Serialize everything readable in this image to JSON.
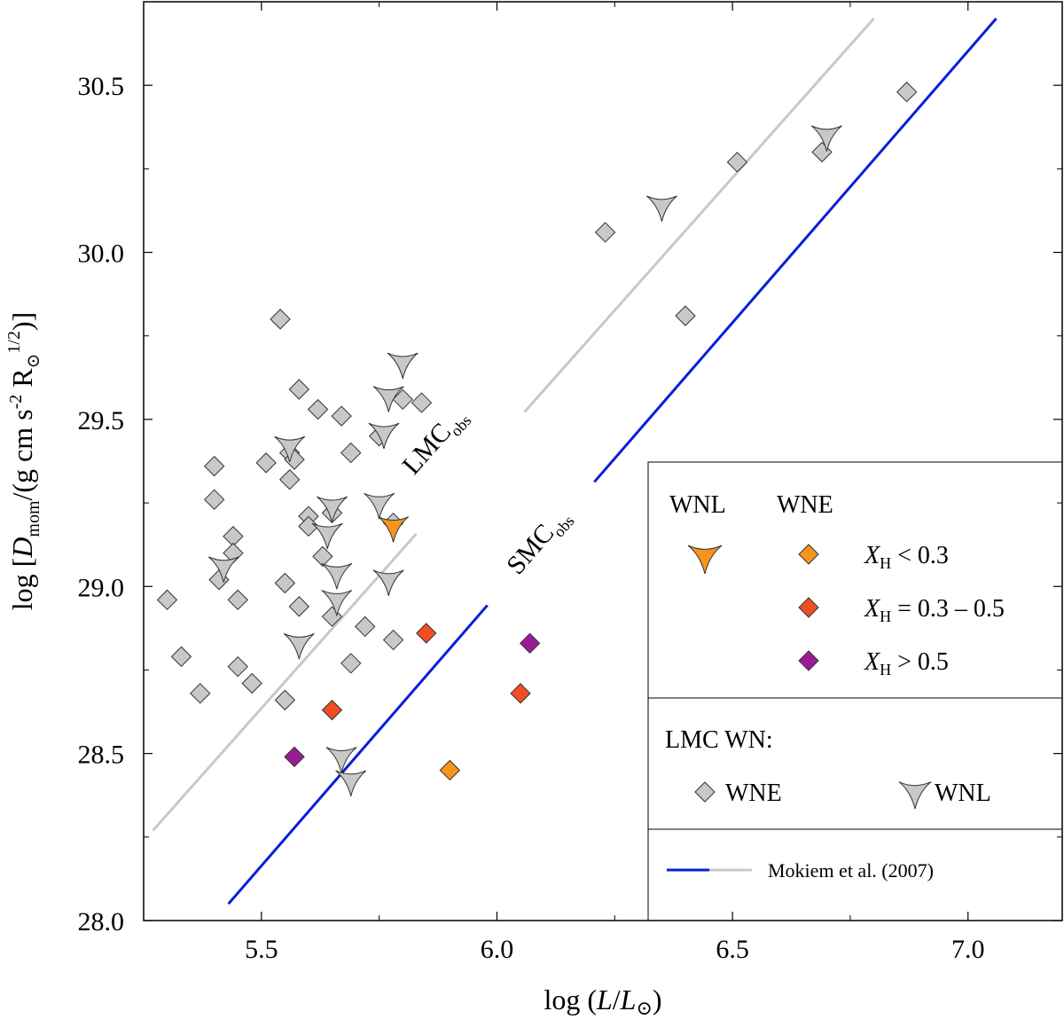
{
  "chart_data": {
    "type": "scatter",
    "xlabel": "log (L/L⊙)",
    "ylabel": "log [Dmom/(g cm s-2 R⊙1/2)]",
    "xlim": [
      5.25,
      7.2
    ],
    "ylim": [
      28.0,
      30.75
    ],
    "x_ticks": [
      5.5,
      6.0,
      6.5,
      7.0
    ],
    "x_tick_labels": [
      "5.5",
      "6.0",
      "6.5",
      "7.0"
    ],
    "y_ticks": [
      28.0,
      28.5,
      29.0,
      29.5,
      30.0,
      30.5
    ],
    "y_tick_labels": [
      "28.0",
      "28.5",
      "29.0",
      "29.5",
      "30.0",
      "30.5"
    ],
    "colors": {
      "lmc_marker": "#c8c8c8",
      "xh_low": "#f7941d",
      "xh_mid": "#f04e23",
      "xh_high": "#9b1b96",
      "wnl_smc": "#f7941d",
      "smc_line": "#0a1edc",
      "lmc_line": "#c8c8c8"
    },
    "lines": [
      {
        "name": "LMC",
        "subscript": "obs",
        "color": "#c8c8c8",
        "points": [
          [
            5.27,
            28.27
          ],
          [
            6.8,
            30.7
          ]
        ],
        "label_pos": [
          5.88,
          29.42
        ]
      },
      {
        "name": "SMC",
        "subscript": "obs",
        "color": "#0a1edc",
        "points": [
          [
            5.43,
            28.05
          ],
          [
            7.06,
            30.7
          ]
        ],
        "label_pos": [
          6.1,
          29.12
        ]
      }
    ],
    "series": [
      {
        "name": "LMC WNE",
        "marker": "diamond",
        "color": "#c8c8c8",
        "points": [
          [
            5.3,
            28.96
          ],
          [
            5.33,
            28.79
          ],
          [
            5.37,
            28.68
          ],
          [
            5.4,
            29.36
          ],
          [
            5.4,
            29.26
          ],
          [
            5.41,
            29.02
          ],
          [
            5.44,
            29.15
          ],
          [
            5.44,
            29.1
          ],
          [
            5.45,
            28.96
          ],
          [
            5.45,
            28.76
          ],
          [
            5.48,
            28.71
          ],
          [
            5.51,
            29.37
          ],
          [
            5.54,
            29.8
          ],
          [
            5.55,
            29.01
          ],
          [
            5.55,
            28.66
          ],
          [
            5.56,
            29.4
          ],
          [
            5.56,
            29.32
          ],
          [
            5.57,
            29.38
          ],
          [
            5.58,
            29.59
          ],
          [
            5.58,
            28.94
          ],
          [
            5.6,
            29.21
          ],
          [
            5.6,
            29.18
          ],
          [
            5.62,
            29.53
          ],
          [
            5.63,
            29.09
          ],
          [
            5.65,
            29.22
          ],
          [
            5.65,
            28.91
          ],
          [
            5.67,
            29.51
          ],
          [
            5.69,
            29.4
          ],
          [
            5.69,
            28.77
          ],
          [
            5.72,
            28.88
          ],
          [
            5.75,
            29.45
          ],
          [
            5.78,
            28.84
          ],
          [
            5.78,
            29.19
          ],
          [
            5.8,
            29.56
          ],
          [
            5.84,
            29.55
          ],
          [
            6.23,
            30.06
          ],
          [
            6.4,
            29.81
          ],
          [
            6.51,
            30.27
          ],
          [
            6.69,
            30.3
          ],
          [
            6.87,
            30.48
          ]
        ]
      },
      {
        "name": "LMC WNL",
        "marker": "triangle-star",
        "color": "#c8c8c8",
        "points": [
          [
            5.42,
            29.06
          ],
          [
            5.56,
            29.42
          ],
          [
            5.58,
            28.83
          ],
          [
            5.64,
            29.16
          ],
          [
            5.65,
            29.24
          ],
          [
            5.66,
            29.04
          ],
          [
            5.66,
            28.96
          ],
          [
            5.67,
            28.49
          ],
          [
            5.69,
            28.42
          ],
          [
            5.75,
            29.25
          ],
          [
            5.76,
            29.46
          ],
          [
            5.77,
            29.02
          ],
          [
            5.77,
            29.57
          ],
          [
            5.8,
            29.67
          ],
          [
            6.35,
            30.14
          ],
          [
            6.7,
            30.35
          ]
        ]
      },
      {
        "name": "SMC WNL",
        "marker": "triangle-star",
        "color": "#f7941d",
        "points": [
          [
            5.78,
            29.18
          ]
        ]
      },
      {
        "name": "SMC WNE XH < 0.3",
        "marker": "diamond",
        "color": "#f7941d",
        "points": [
          [
            5.9,
            28.45
          ]
        ]
      },
      {
        "name": "SMC WNE XH = 0.3 – 0.5",
        "marker": "diamond",
        "color": "#f04e23",
        "points": [
          [
            5.65,
            28.63
          ],
          [
            5.85,
            28.86
          ],
          [
            6.05,
            28.68
          ]
        ]
      },
      {
        "name": "SMC WNE XH > 0.5",
        "marker": "diamond",
        "color": "#9b1b96",
        "points": [
          [
            5.57,
            28.49
          ],
          [
            6.07,
            28.83
          ]
        ]
      }
    ],
    "legend": {
      "placement": "bottom-right",
      "col_wnl": "WNL",
      "col_wne": "WNE",
      "xh_symbol": "X",
      "xh_sub": "H",
      "xh_labels": [
        "< 0.3",
        "= 0.3 – 0.5",
        "> 0.5"
      ],
      "lmc_heading": "LMC WN:",
      "lmc_wne": "WNE",
      "lmc_wnl": "WNL",
      "reference": "Mokiem et al. (2007)"
    }
  }
}
